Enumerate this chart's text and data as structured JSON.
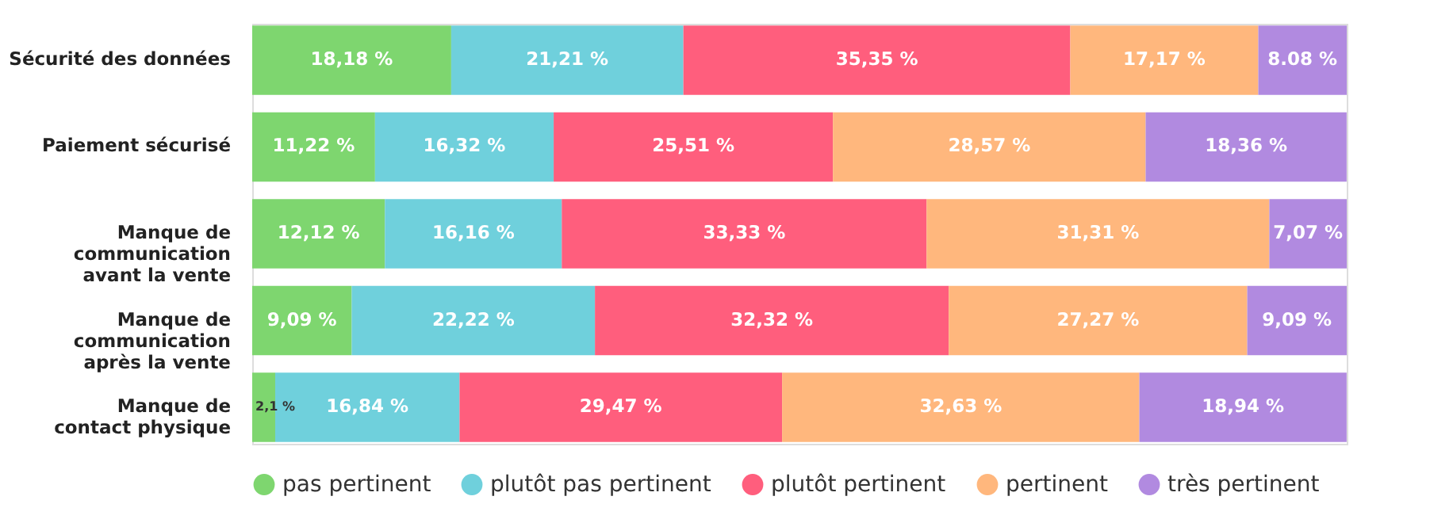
{
  "chart_data": {
    "type": "bar",
    "orientation": "horizontal",
    "stacked": true,
    "data_labels": true,
    "legend": "bottom",
    "categories": [
      "Sécurité des données",
      "Paiement sécurisé",
      "Manque de\ncommunication\navant la vente",
      "Manque de\ncommunication\naprès la vente",
      "Manque de\ncontact physique"
    ],
    "series": [
      {
        "name": "pas pertinent",
        "color": "#7ed66f",
        "values": [
          18.18,
          11.22,
          12.12,
          9.09,
          2.1
        ],
        "value_labels": [
          "18,18 %",
          "11,22 %",
          "12,12 %",
          "9,09 %",
          "2,1 %"
        ]
      },
      {
        "name": "plutôt pas pertinent",
        "color": "#6fd0dc",
        "values": [
          21.21,
          16.32,
          16.16,
          22.22,
          16.84
        ],
        "value_labels": [
          "21,21 %",
          "16,32 %",
          "16,16 %",
          "22,22 %",
          "16,84 %"
        ]
      },
      {
        "name": "plutôt pertinent",
        "color": "#ff5e7d",
        "values": [
          35.35,
          25.51,
          33.33,
          32.32,
          29.47
        ],
        "value_labels": [
          "35,35 %",
          "25,51 %",
          "33,33 %",
          "32,32 %",
          "29,47 %"
        ]
      },
      {
        "name": "pertinent",
        "color": "#ffb77d",
        "values": [
          17.17,
          28.57,
          31.31,
          27.27,
          32.63
        ],
        "value_labels": [
          "17,17 %",
          "28,57 %",
          "31,31 %",
          "27,27 %",
          "32,63 %"
        ]
      },
      {
        "name": "très pertinent",
        "color": "#b18ae0",
        "values": [
          8.08,
          18.36,
          7.07,
          9.09,
          18.94
        ],
        "value_labels": [
          "8.08 %",
          "18,36 %",
          "7,07 %",
          "9,09 %",
          "18,94 %"
        ]
      }
    ]
  }
}
